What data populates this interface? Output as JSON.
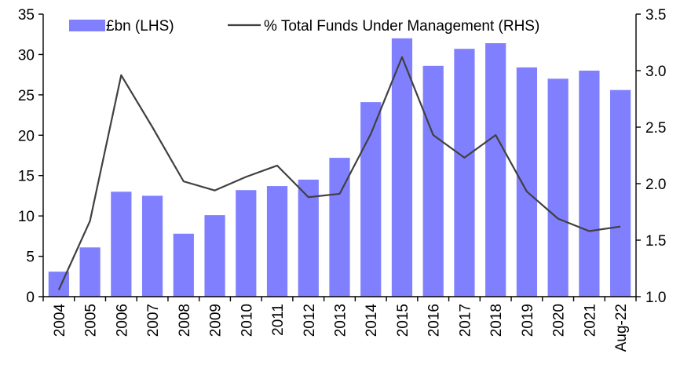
{
  "chart_data": {
    "type": "bar+line",
    "categories": [
      "2004",
      "2005",
      "2006",
      "2007",
      "2008",
      "2009",
      "2010",
      "2011",
      "2012",
      "2013",
      "2014",
      "2015",
      "2016",
      "2017",
      "2018",
      "2019",
      "2020",
      "2021",
      "Aug-22"
    ],
    "series": [
      {
        "name": "£bn (LHS)",
        "kind": "bar",
        "axis": "left",
        "color": "#8080ff",
        "values": [
          3.1,
          6.1,
          13.0,
          12.5,
          7.8,
          10.1,
          13.2,
          13.7,
          14.5,
          17.2,
          24.1,
          32.0,
          28.6,
          30.7,
          31.4,
          28.4,
          27.0,
          28.0,
          25.6
        ]
      },
      {
        "name": "% Total Funds Under Management (RHS)",
        "kind": "line",
        "axis": "right",
        "color": "#404040",
        "values": [
          1.06,
          1.67,
          2.96,
          2.5,
          2.02,
          1.94,
          2.06,
          2.16,
          1.88,
          1.91,
          2.44,
          3.12,
          2.43,
          2.23,
          2.43,
          1.93,
          1.69,
          1.58,
          1.62
        ]
      }
    ],
    "y_left": {
      "min": 0,
      "max": 35,
      "ticks": [
        "0",
        "5",
        "10",
        "15",
        "20",
        "25",
        "30",
        "35"
      ]
    },
    "y_right": {
      "min": 1.0,
      "max": 3.5,
      "ticks": [
        "1.0",
        "1.5",
        "2.0",
        "2.5",
        "3.0",
        "3.5"
      ]
    },
    "xlabel": "",
    "ylabel_left": "",
    "ylabel_right": "",
    "title": "",
    "grid": false,
    "legend_position": "top"
  }
}
